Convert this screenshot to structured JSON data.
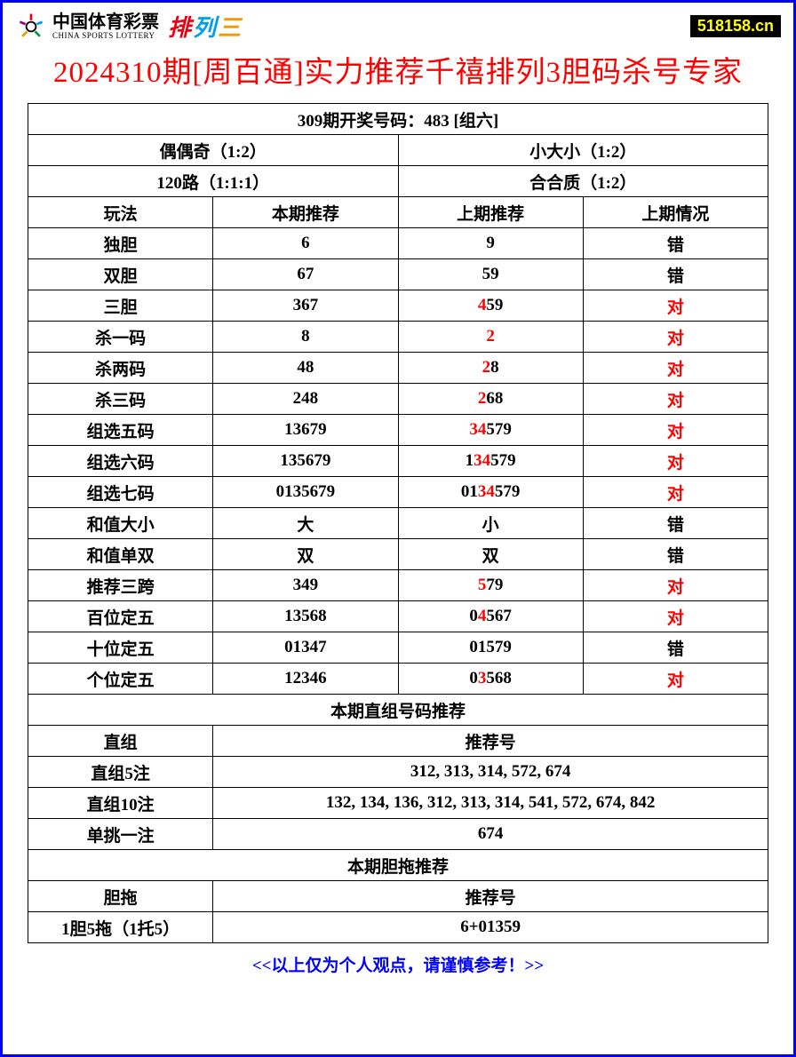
{
  "header": {
    "logo_cn": "中国体育彩票",
    "logo_en": "CHINA SPORTS LOTTERY",
    "pailie_chars": [
      "排",
      "列",
      "三"
    ],
    "pailie_colors": [
      "#e60012",
      "#00a0e9",
      "#f39800"
    ],
    "badge": "518158.cn"
  },
  "title": "2024310期[周百通]实力推荐千禧排列3胆码杀号专家",
  "draw_header": "309期开奖号码：483 [组六]",
  "pattern_rows": [
    {
      "left": "偶偶奇（1:2）",
      "right": "小大小（1:2）"
    },
    {
      "left": "120路（1:1:1）",
      "right": "合合质（1:2）"
    }
  ],
  "col_headers": {
    "c1": "玩法",
    "c2": "本期推荐",
    "c3": "上期推荐",
    "c4": "上期情况"
  },
  "rows": [
    {
      "name": "独胆",
      "curr": "6",
      "prev": [
        {
          "t": "9",
          "r": false
        }
      ],
      "ok": false
    },
    {
      "name": "双胆",
      "curr": "67",
      "prev": [
        {
          "t": "59",
          "r": false
        }
      ],
      "ok": false
    },
    {
      "name": "三胆",
      "curr": "367",
      "prev": [
        {
          "t": "4",
          "r": true
        },
        {
          "t": "59",
          "r": false
        }
      ],
      "ok": true
    },
    {
      "name": "杀一码",
      "curr": "8",
      "prev": [
        {
          "t": "2",
          "r": true
        }
      ],
      "ok": true
    },
    {
      "name": "杀两码",
      "curr": "48",
      "prev": [
        {
          "t": "2",
          "r": true
        },
        {
          "t": "8",
          "r": false
        }
      ],
      "ok": true
    },
    {
      "name": "杀三码",
      "curr": "248",
      "prev": [
        {
          "t": "2",
          "r": true
        },
        {
          "t": "6",
          "r": false
        },
        {
          "t": "8",
          "r": false
        }
      ],
      "ok": true
    },
    {
      "name": "组选五码",
      "curr": "13679",
      "prev": [
        {
          "t": "34",
          "r": true
        },
        {
          "t": "579",
          "r": false
        }
      ],
      "ok": true
    },
    {
      "name": "组选六码",
      "curr": "135679",
      "prev": [
        {
          "t": "1",
          "r": false
        },
        {
          "t": "34",
          "r": true
        },
        {
          "t": "579",
          "r": false
        }
      ],
      "ok": true
    },
    {
      "name": "组选七码",
      "curr": "0135679",
      "prev": [
        {
          "t": "01",
          "r": false
        },
        {
          "t": "34",
          "r": true
        },
        {
          "t": "579",
          "r": false
        }
      ],
      "ok": true
    },
    {
      "name": "和值大小",
      "curr": "大",
      "prev": [
        {
          "t": "小",
          "r": false
        }
      ],
      "ok": false
    },
    {
      "name": "和值单双",
      "curr": "双",
      "prev": [
        {
          "t": "双",
          "r": false
        }
      ],
      "ok": false
    },
    {
      "name": "推荐三跨",
      "curr": "349",
      "prev": [
        {
          "t": "5",
          "r": true
        },
        {
          "t": "79",
          "r": false
        }
      ],
      "ok": true
    },
    {
      "name": "百位定五",
      "curr": "13568",
      "prev": [
        {
          "t": "0",
          "r": false
        },
        {
          "t": "4",
          "r": true
        },
        {
          "t": "567",
          "r": false
        }
      ],
      "ok": true
    },
    {
      "name": "十位定五",
      "curr": "01347",
      "prev": [
        {
          "t": "01579",
          "r": false
        }
      ],
      "ok": false
    },
    {
      "name": "个位定五",
      "curr": "12346",
      "prev": [
        {
          "t": "0",
          "r": false
        },
        {
          "t": "3",
          "r": true
        },
        {
          "t": "568",
          "r": false
        }
      ],
      "ok": true
    }
  ],
  "section2_header": "本期直组号码推荐",
  "section2_cols": {
    "c1": "直组",
    "c2": "推荐号"
  },
  "section2_rows": [
    {
      "name": "直组5注",
      "val": "312, 313, 314, 572, 674"
    },
    {
      "name": "直组10注",
      "val": "132, 134, 136, 312, 313, 314, 541, 572, 674, 842"
    },
    {
      "name": "单挑一注",
      "val": "674"
    }
  ],
  "section3_header": "本期胆拖推荐",
  "section3_cols": {
    "c1": "胆拖",
    "c2": "推荐号"
  },
  "section3_rows": [
    {
      "name": "1胆5拖（1托5）",
      "val": "6+01359"
    }
  ],
  "footer": "<<以上仅为个人观点，请谨慎参考！>>",
  "status_labels": {
    "correct": "对",
    "wrong": "错"
  },
  "colors": {
    "border": "#0000ff",
    "title": "#ff0000",
    "highlight": "#ff0000",
    "footer": "#0000ff",
    "badge_bg": "#000000",
    "badge_fg": "#ffff00"
  }
}
